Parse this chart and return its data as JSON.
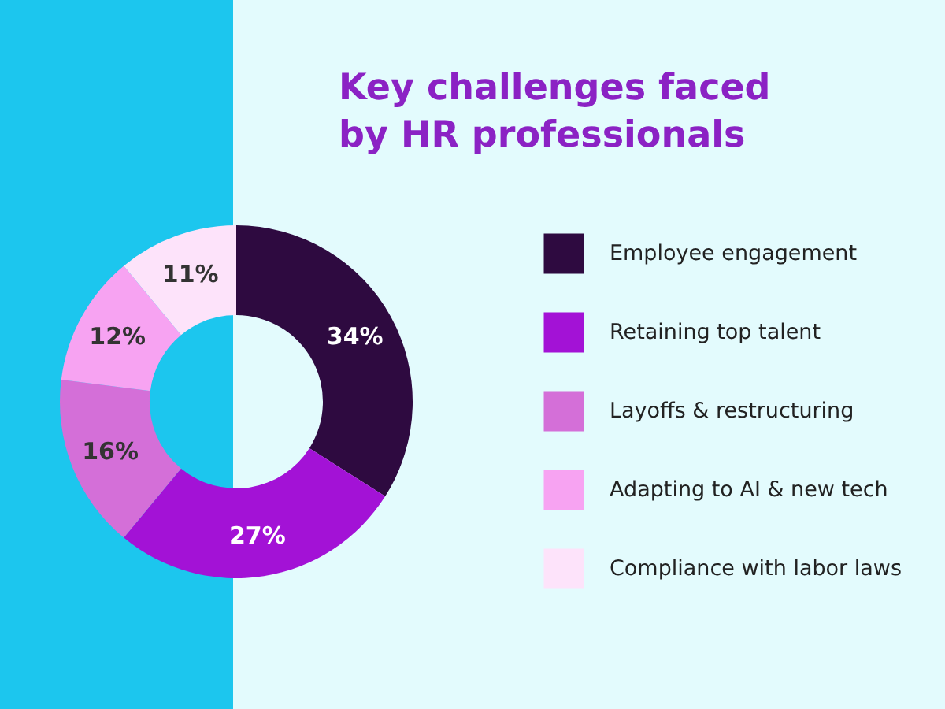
{
  "chart_data": {
    "type": "donut",
    "title": "Key challenges faced by HR professionals",
    "categories": [
      "Employee engagement",
      "Retaining  top talent",
      "Layoffs & restructuring",
      "Adapting to AI & new tech",
      "Compliance with labor laws"
    ],
    "values": [
      34,
      27,
      16,
      12,
      11
    ],
    "value_labels": [
      "34%",
      "27%",
      "16%",
      "12%",
      "11%"
    ],
    "colors": [
      "#2e0a40",
      "#a312d6",
      "#d46fd8",
      "#f7a3f2",
      "#fde3fa"
    ],
    "legend": "right"
  }
}
